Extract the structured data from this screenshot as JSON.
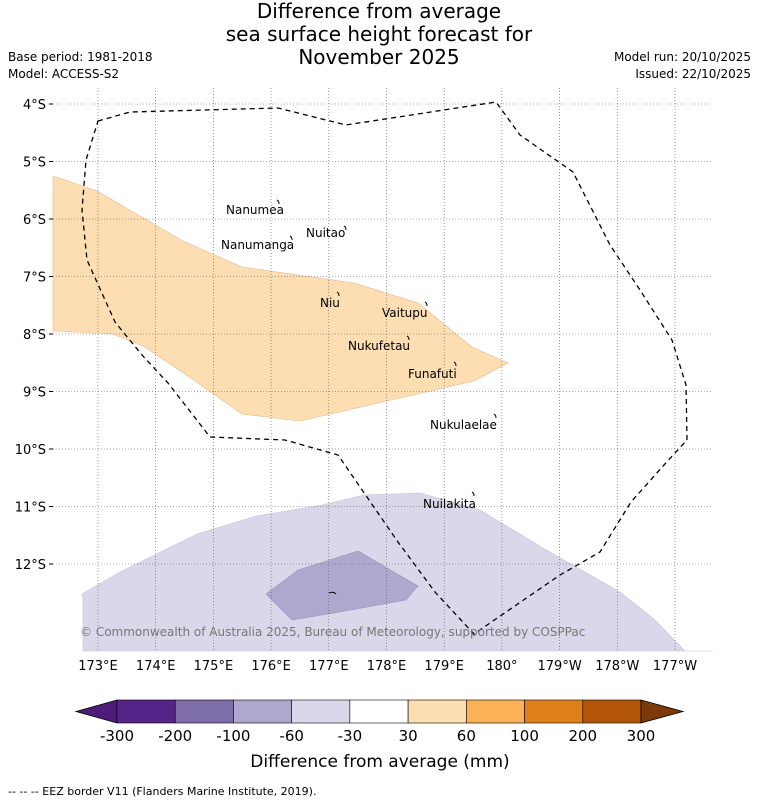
{
  "title": {
    "line1": "Difference from average",
    "line2": "sea surface height forecast for",
    "line3": "November 2025"
  },
  "meta": {
    "base_period": "Base period: 1981-2018",
    "model": "Model: ACCESS-S2",
    "model_run": "Model run: 20/10/2025",
    "issued": "Issued: 22/10/2025"
  },
  "map": {
    "lat_labels": [
      "4°S",
      "5°S",
      "6°S",
      "7°S",
      "8°S",
      "9°S",
      "10°S",
      "11°S",
      "12°S"
    ],
    "lon_labels": [
      "173°E",
      "174°E",
      "175°E",
      "176°E",
      "177°E",
      "178°E",
      "179°E",
      "180°",
      "179°W",
      "178°W",
      "177°W"
    ],
    "islands": [
      {
        "name": "Nanumea"
      },
      {
        "name": "Nuitao"
      },
      {
        "name": "Nanumanga"
      },
      {
        "name": "Niu"
      },
      {
        "name": "Vaitupu"
      },
      {
        "name": "Nukufetau"
      },
      {
        "name": "Funafuti"
      },
      {
        "name": "Nukulaelae"
      },
      {
        "name": "Nuilakita"
      }
    ],
    "copyright": "© Commonwealth of Australia 2025, Bureau of Meteorology, supported by COSPPac"
  },
  "colorbar": {
    "title": "Difference from average (mm)",
    "ticks": [
      "-300",
      "-200",
      "-100",
      "-60",
      "-30",
      "30",
      "60",
      "100",
      "200",
      "300"
    ],
    "colors": [
      "#4d1b7a",
      "#54268a",
      "#7e6ea8",
      "#aea8ce",
      "#d8d8ea",
      "#ffffff",
      "#fddeb2",
      "#fbb257",
      "#e0801a",
      "#b25508",
      "#7e3a06"
    ]
  },
  "legend": {
    "eez": "--  --  -- EEZ border V11 (Flanders Marine Institute, 2019)."
  }
}
